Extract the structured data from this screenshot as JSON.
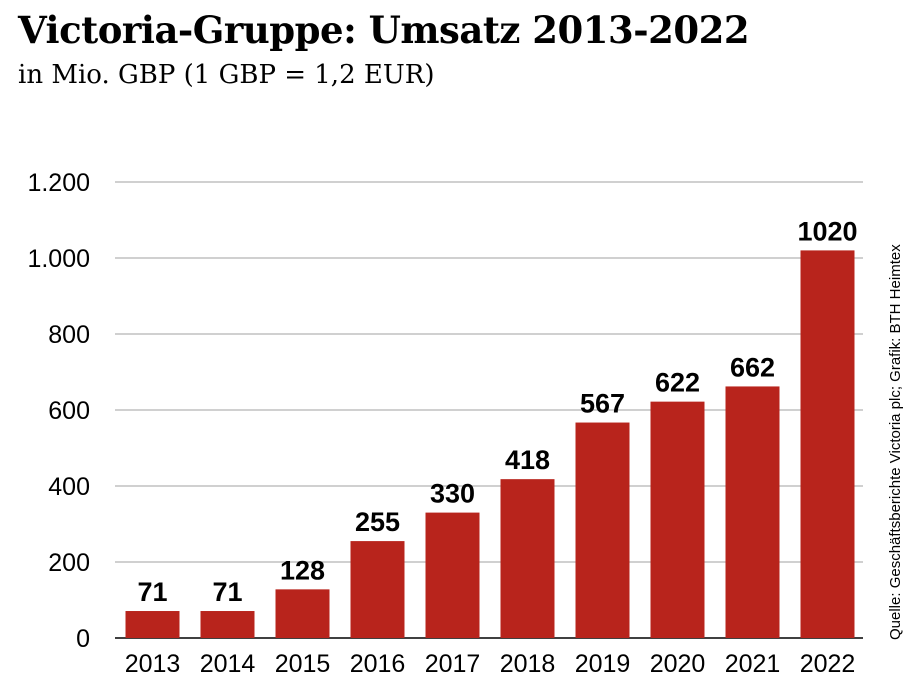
{
  "header": {
    "title": "Victoria-Gruppe: Umsatz 2013-2022",
    "subtitle": "in Mio. GBP (1 GBP = 1,2 EUR)"
  },
  "source": "Quelle: Geschäftsberichte Victoria plc; Grafik: BTH Heimtex",
  "colors": {
    "bar": "#b8241c",
    "grid": "#b3b3b3",
    "text": "#000000"
  },
  "chart_data": {
    "type": "bar",
    "title": "Victoria-Gruppe: Umsatz 2013-2022",
    "subtitle": "in Mio. GBP (1 GBP = 1,2 EUR)",
    "xlabel": "",
    "ylabel": "",
    "categories": [
      "2013",
      "2014",
      "2015",
      "2016",
      "2017",
      "2018",
      "2019",
      "2020",
      "2021",
      "2022"
    ],
    "values": [
      71,
      71,
      128,
      255,
      330,
      418,
      567,
      622,
      662,
      1020
    ],
    "value_labels": [
      "71",
      "71",
      "128",
      "255",
      "330",
      "418",
      "567",
      "622",
      "662",
      "1020"
    ],
    "ylim": [
      0,
      1200
    ],
    "yticks": [
      0,
      200,
      400,
      600,
      800,
      1000,
      1200
    ],
    "ytick_labels": [
      "0",
      "200",
      "400",
      "600",
      "800",
      "1.000",
      "1.200"
    ],
    "grid": true,
    "legend": "none"
  }
}
